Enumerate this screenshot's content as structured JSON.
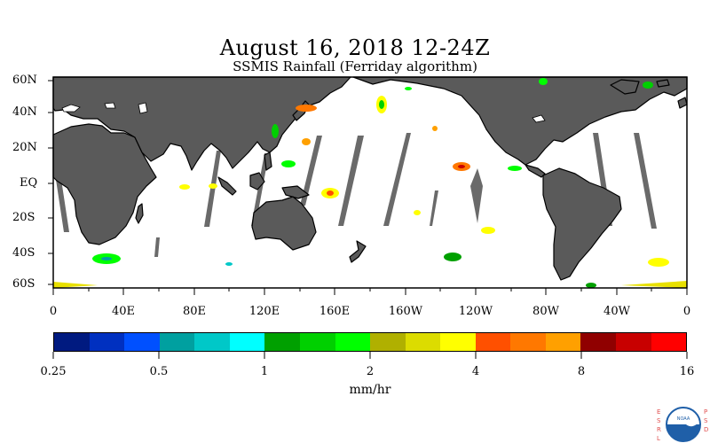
{
  "title": "August 16, 2018 12-24Z",
  "subtitle": "SSMIS Rainfall (Ferriday algorithm)",
  "lat_labels": [
    "60N",
    "40N",
    "20N",
    "EQ",
    "20S",
    "40S",
    "60S"
  ],
  "lon_labels": [
    "0",
    "40E",
    "80E",
    "120E",
    "160E",
    "160W",
    "120W",
    "80W",
    "40W",
    "0"
  ],
  "colorbar": {
    "colors": [
      "#001a80",
      "#0030c0",
      "#0050ff",
      "#00a0a0",
      "#00c8c8",
      "#00ffff",
      "#00a000",
      "#00d000",
      "#00ff00",
      "#b0b000",
      "#dcdc00",
      "#ffff00",
      "#ff5000",
      "#ff7800",
      "#ffa000",
      "#900000",
      "#c80000",
      "#ff0000"
    ],
    "tick_labels": [
      "0.25",
      "0.5",
      "1",
      "2",
      "4",
      "8",
      "16"
    ],
    "units": "mm/hr"
  },
  "logo": {
    "left_letters": "ESRL",
    "right_letters": "PSD",
    "center_text": "NOAA"
  },
  "colors": {
    "land": "#5a5a5a",
    "no_data": "#6a6a6a",
    "ocean": "#ffffff"
  }
}
